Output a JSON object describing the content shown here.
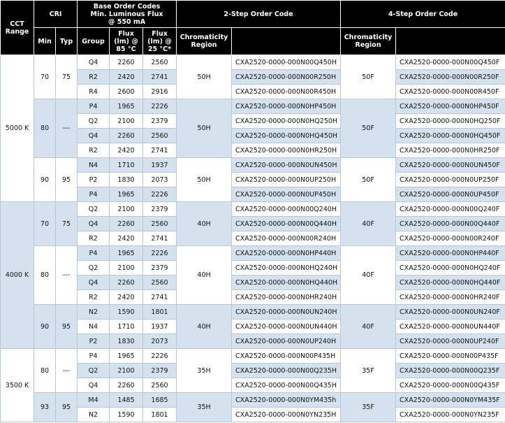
{
  "table": {
    "header": {
      "cct": [
        "CCT",
        "Range"
      ],
      "cri": "CRI",
      "base": [
        "Base Order Codes",
        "Min. Luminous Flux",
        "@ 550 mA"
      ],
      "two_step": "2-Step Order Code",
      "four_step": "4-Step Order Code",
      "min": "Min",
      "typ": "Typ",
      "group": "Group",
      "flux85": [
        "Flux",
        "(lm) @",
        "85 °C"
      ],
      "flux25": [
        "Flux",
        "(lm) @",
        "25 °C*"
      ],
      "chrom2": [
        "Chromaticity",
        "Region"
      ],
      "chrom4": [
        "Chromaticity",
        "Region"
      ]
    },
    "blocks": [
      {
        "cct": "5000 K",
        "subgroups": [
          {
            "min": 70,
            "typ": 75,
            "region2": "50H",
            "region4": "50F",
            "rows": [
              {
                "group": "Q4",
                "flux85": 2260,
                "flux25": 2560,
                "code2": "CXA2520-0000-000N00Q450H",
                "code4": "CXA2520-0000-000N00Q450F"
              },
              {
                "group": "R2",
                "flux85": 2420,
                "flux25": 2741,
                "code2": "CXA2520-0000-000N00R250H",
                "code4": "CXA2520-0000-000N00R250F"
              },
              {
                "group": "R4",
                "flux85": 2600,
                "flux25": 2916,
                "code2": "CXA2520-0000-000N00R450H",
                "code4": "CXA2520-0000-000N00R450F"
              }
            ]
          },
          {
            "min": 80,
            "typ": "---",
            "region2": "50H",
            "region4": "50F",
            "rows": [
              {
                "group": "P4",
                "flux85": 1965,
                "flux25": 2226,
                "code2": "CXA2520-0000-000N0HP450H",
                "code4": "CXA2520-0000-000N0HP450F"
              },
              {
                "group": "Q2",
                "flux85": 2100,
                "flux25": 2379,
                "code2": "CXA2520-0000-000N0HQ250H",
                "code4": "CXA2520-0000-000N0HQ250F"
              },
              {
                "group": "Q4",
                "flux85": 2260,
                "flux25": 2560,
                "code2": "CXA2520-0000-000N0HQ450H",
                "code4": "CXA2520-0000-000N0HQ450F"
              },
              {
                "group": "R2",
                "flux85": 2420,
                "flux25": 2741,
                "code2": "CXA2520-0000-000N0HR250H",
                "code4": "CXA2520-0000-000N0HR250F"
              }
            ]
          },
          {
            "min": 90,
            "typ": 95,
            "region2": "50H",
            "region4": "50F",
            "rows": [
              {
                "group": "N4",
                "flux85": 1710,
                "flux25": 1937,
                "code2": "CXA2520-0000-000N0UN450H",
                "code4": "CXA2520-0000-000N0UN450F"
              },
              {
                "group": "P2",
                "flux85": 1830,
                "flux25": 2073,
                "code2": "CXA2520-0000-000N0UP250H",
                "code4": "CXA2520-0000-000N0UP250F"
              },
              {
                "group": "P4",
                "flux85": 1965,
                "flux25": 2226,
                "code2": "CXA2520-0000-000N0UP450H",
                "code4": "CXA2520-0000-000N0UP450F"
              }
            ]
          }
        ]
      },
      {
        "cct": "4000 K",
        "subgroups": [
          {
            "min": 70,
            "typ": 75,
            "region2": "40H",
            "region4": "40F",
            "rows": [
              {
                "group": "Q2",
                "flux85": 2100,
                "flux25": 2379,
                "code2": "CXA2520-0000-000N00Q240H",
                "code4": "CXA2520-0000-000N00Q240F"
              },
              {
                "group": "Q4",
                "flux85": 2260,
                "flux25": 2560,
                "code2": "CXA2520-0000-000N00Q440H",
                "code4": "CXA2520-0000-000N00Q440F"
              },
              {
                "group": "R2",
                "flux85": 2420,
                "flux25": 2741,
                "code2": "CXA2520-0000-000N00R240H",
                "code4": "CXA2520-0000-000N00R240F"
              }
            ]
          },
          {
            "min": 80,
            "typ": "---",
            "region2": "40H",
            "region4": "40F",
            "rows": [
              {
                "group": "P4",
                "flux85": 1965,
                "flux25": 2226,
                "code2": "CXA2520-0000-000N0HP440H",
                "code4": "CXA2520-0000-000N0HP440F"
              },
              {
                "group": "Q2",
                "flux85": 2100,
                "flux25": 2379,
                "code2": "CXA2520-0000-000N0HQ240H",
                "code4": "CXA2520-0000-000N0HQ240F"
              },
              {
                "group": "Q4",
                "flux85": 2260,
                "flux25": 2560,
                "code2": "CXA2520-0000-000N0HQ440H",
                "code4": "CXA2520-0000-000N0HQ440F"
              },
              {
                "group": "R2",
                "flux85": 2420,
                "flux25": 2741,
                "code2": "CXA2520-0000-000N0HR240H",
                "code4": "CXA2520-0000-000N0HR240F"
              }
            ]
          },
          {
            "min": 90,
            "typ": 95,
            "region2": "40H",
            "region4": "40F",
            "rows": [
              {
                "group": "N2",
                "flux85": 1590,
                "flux25": 1801,
                "code2": "CXA2520-0000-000N0UN240H",
                "code4": "CXA2520-0000-000N0UN240F"
              },
              {
                "group": "N4",
                "flux85": 1710,
                "flux25": 1937,
                "code2": "CXA2520-0000-000N0UN440H",
                "code4": "CXA2520-0000-000N0UN440F"
              },
              {
                "group": "P2",
                "flux85": 1830,
                "flux25": 2073,
                "code2": "CXA2520-0000-000N0UP240H",
                "code4": "CXA2520-0000-000N0UP240F"
              }
            ]
          }
        ]
      },
      {
        "cct": "3500 K",
        "subgroups": [
          {
            "min": 80,
            "typ": "---",
            "region2": "35H",
            "region4": "35F",
            "rows": [
              {
                "group": "P4",
                "flux85": 1965,
                "flux25": 2226,
                "code2": "CXA2520-0000-000N00P435H",
                "code4": "CXA2520-0000-000N00P435F"
              },
              {
                "group": "Q2",
                "flux85": 2100,
                "flux25": 2379,
                "code2": "CXA2520-0000-000N00Q235H",
                "code4": "CXA2520-0000-000N00Q235F"
              },
              {
                "group": "Q4",
                "flux85": 2260,
                "flux25": 2560,
                "code2": "CXA2520-0000-000N00Q435H",
                "code4": "CXA2520-0000-000N00Q435F"
              }
            ]
          },
          {
            "min": 93,
            "typ": 95,
            "region2": "35H",
            "region4": "35F",
            "rows": [
              {
                "group": "M4",
                "flux85": 1485,
                "flux25": 1685,
                "code2": "CXA2520-0000-000N0YM435h",
                "code4": "CXA2520-0000-000N0YM435F"
              },
              {
                "group": "N2",
                "flux85": 1590,
                "flux25": 1801,
                "code2": "CXA2520-0000-000N0YN235H",
                "code4": "CXA2520-0000-000N0YN235F"
              }
            ]
          }
        ]
      }
    ]
  }
}
